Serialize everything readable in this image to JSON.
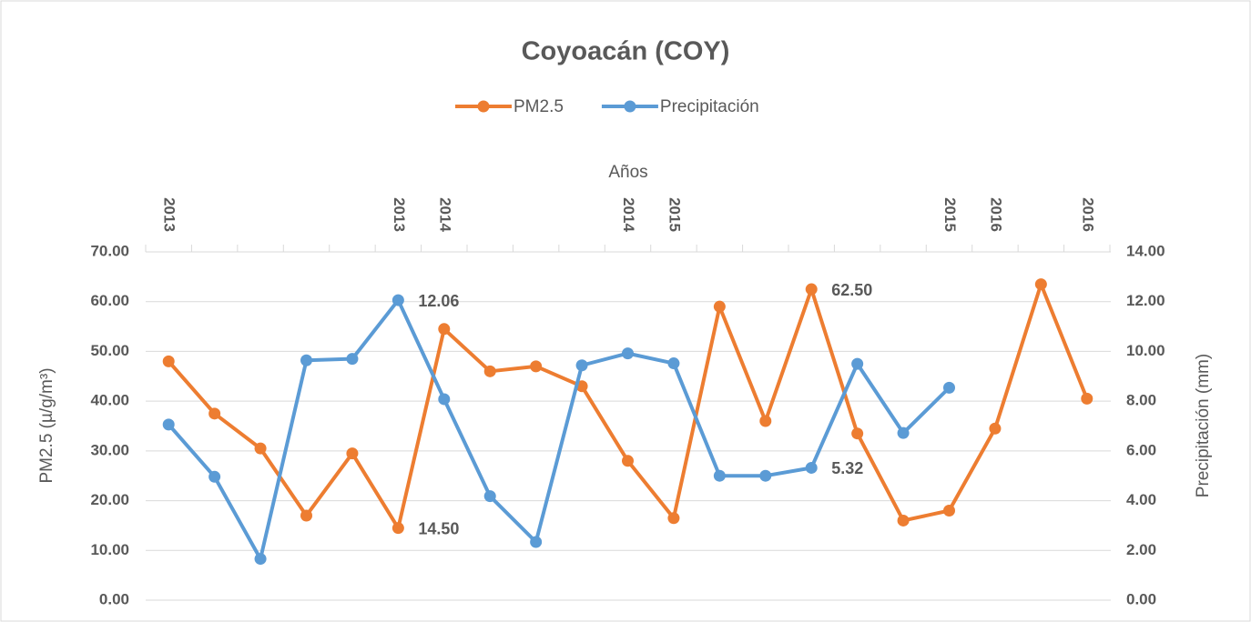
{
  "chart_data": {
    "type": "line",
    "title": "Coyoacán (COY)",
    "x_label": "Años",
    "y_label": "PM2.5 (µ/g/m³)",
    "y2_label": "Precipitación (mm)",
    "legend": "top",
    "grid": true,
    "categories": [
      "2013",
      null,
      null,
      null,
      null,
      "2013",
      "2014",
      null,
      null,
      null,
      "2014",
      "2015",
      null,
      null,
      null,
      null,
      null,
      "2015",
      "2016",
      null,
      "2016"
    ],
    "series": [
      {
        "name": "PM2.5",
        "color": "#ed7d31",
        "values": [
          48,
          37.5,
          30.5,
          17,
          29.5,
          14.5,
          54.5,
          46,
          47,
          43,
          28,
          16.5,
          59,
          36,
          62.5,
          33.5,
          16,
          18,
          34.5,
          63.5,
          40.5
        ],
        "value_labels": [
          null,
          null,
          null,
          null,
          null,
          "14.50",
          null,
          null,
          null,
          null,
          null,
          null,
          null,
          null,
          "62.50",
          null,
          null,
          null,
          null,
          null,
          null
        ]
      },
      {
        "name": "Precipitación",
        "color": "#5b9bd5",
        "axis": "y2",
        "values": [
          7.06,
          4.96,
          1.66,
          9.64,
          9.7,
          12.06,
          8.08,
          4.18,
          2.34,
          9.44,
          9.92,
          9.52,
          5.0,
          5.0,
          5.32,
          9.5,
          6.72,
          8.54,
          null,
          null,
          null
        ],
        "value_labels": [
          null,
          null,
          null,
          null,
          null,
          "12.06",
          null,
          null,
          null,
          null,
          null,
          null,
          null,
          null,
          "5.32",
          null,
          null,
          null,
          null,
          null,
          null
        ]
      }
    ],
    "ylim": [
      0,
      70
    ],
    "yticks": [
      {
        "value": 0,
        "label": "0.00"
      },
      {
        "value": 10,
        "label": "10.00"
      },
      {
        "value": 20,
        "label": "20.00"
      },
      {
        "value": 30,
        "label": "30.00"
      },
      {
        "value": 40,
        "label": "40.00"
      },
      {
        "value": 50,
        "label": "50.00"
      },
      {
        "value": 60,
        "label": "60.00"
      },
      {
        "value": 70,
        "label": "70.00"
      }
    ],
    "y2lim": [
      0,
      14
    ],
    "y2ticks": [
      {
        "value": 0,
        "label": "0.00"
      },
      {
        "value": 2,
        "label": "2.00"
      },
      {
        "value": 4,
        "label": "4.00"
      },
      {
        "value": 6,
        "label": "6.00"
      },
      {
        "value": 8,
        "label": "8.00"
      },
      {
        "value": 10,
        "label": "10.00"
      },
      {
        "value": 12,
        "label": "12.00"
      },
      {
        "value": 14,
        "label": "14.00"
      }
    ]
  }
}
